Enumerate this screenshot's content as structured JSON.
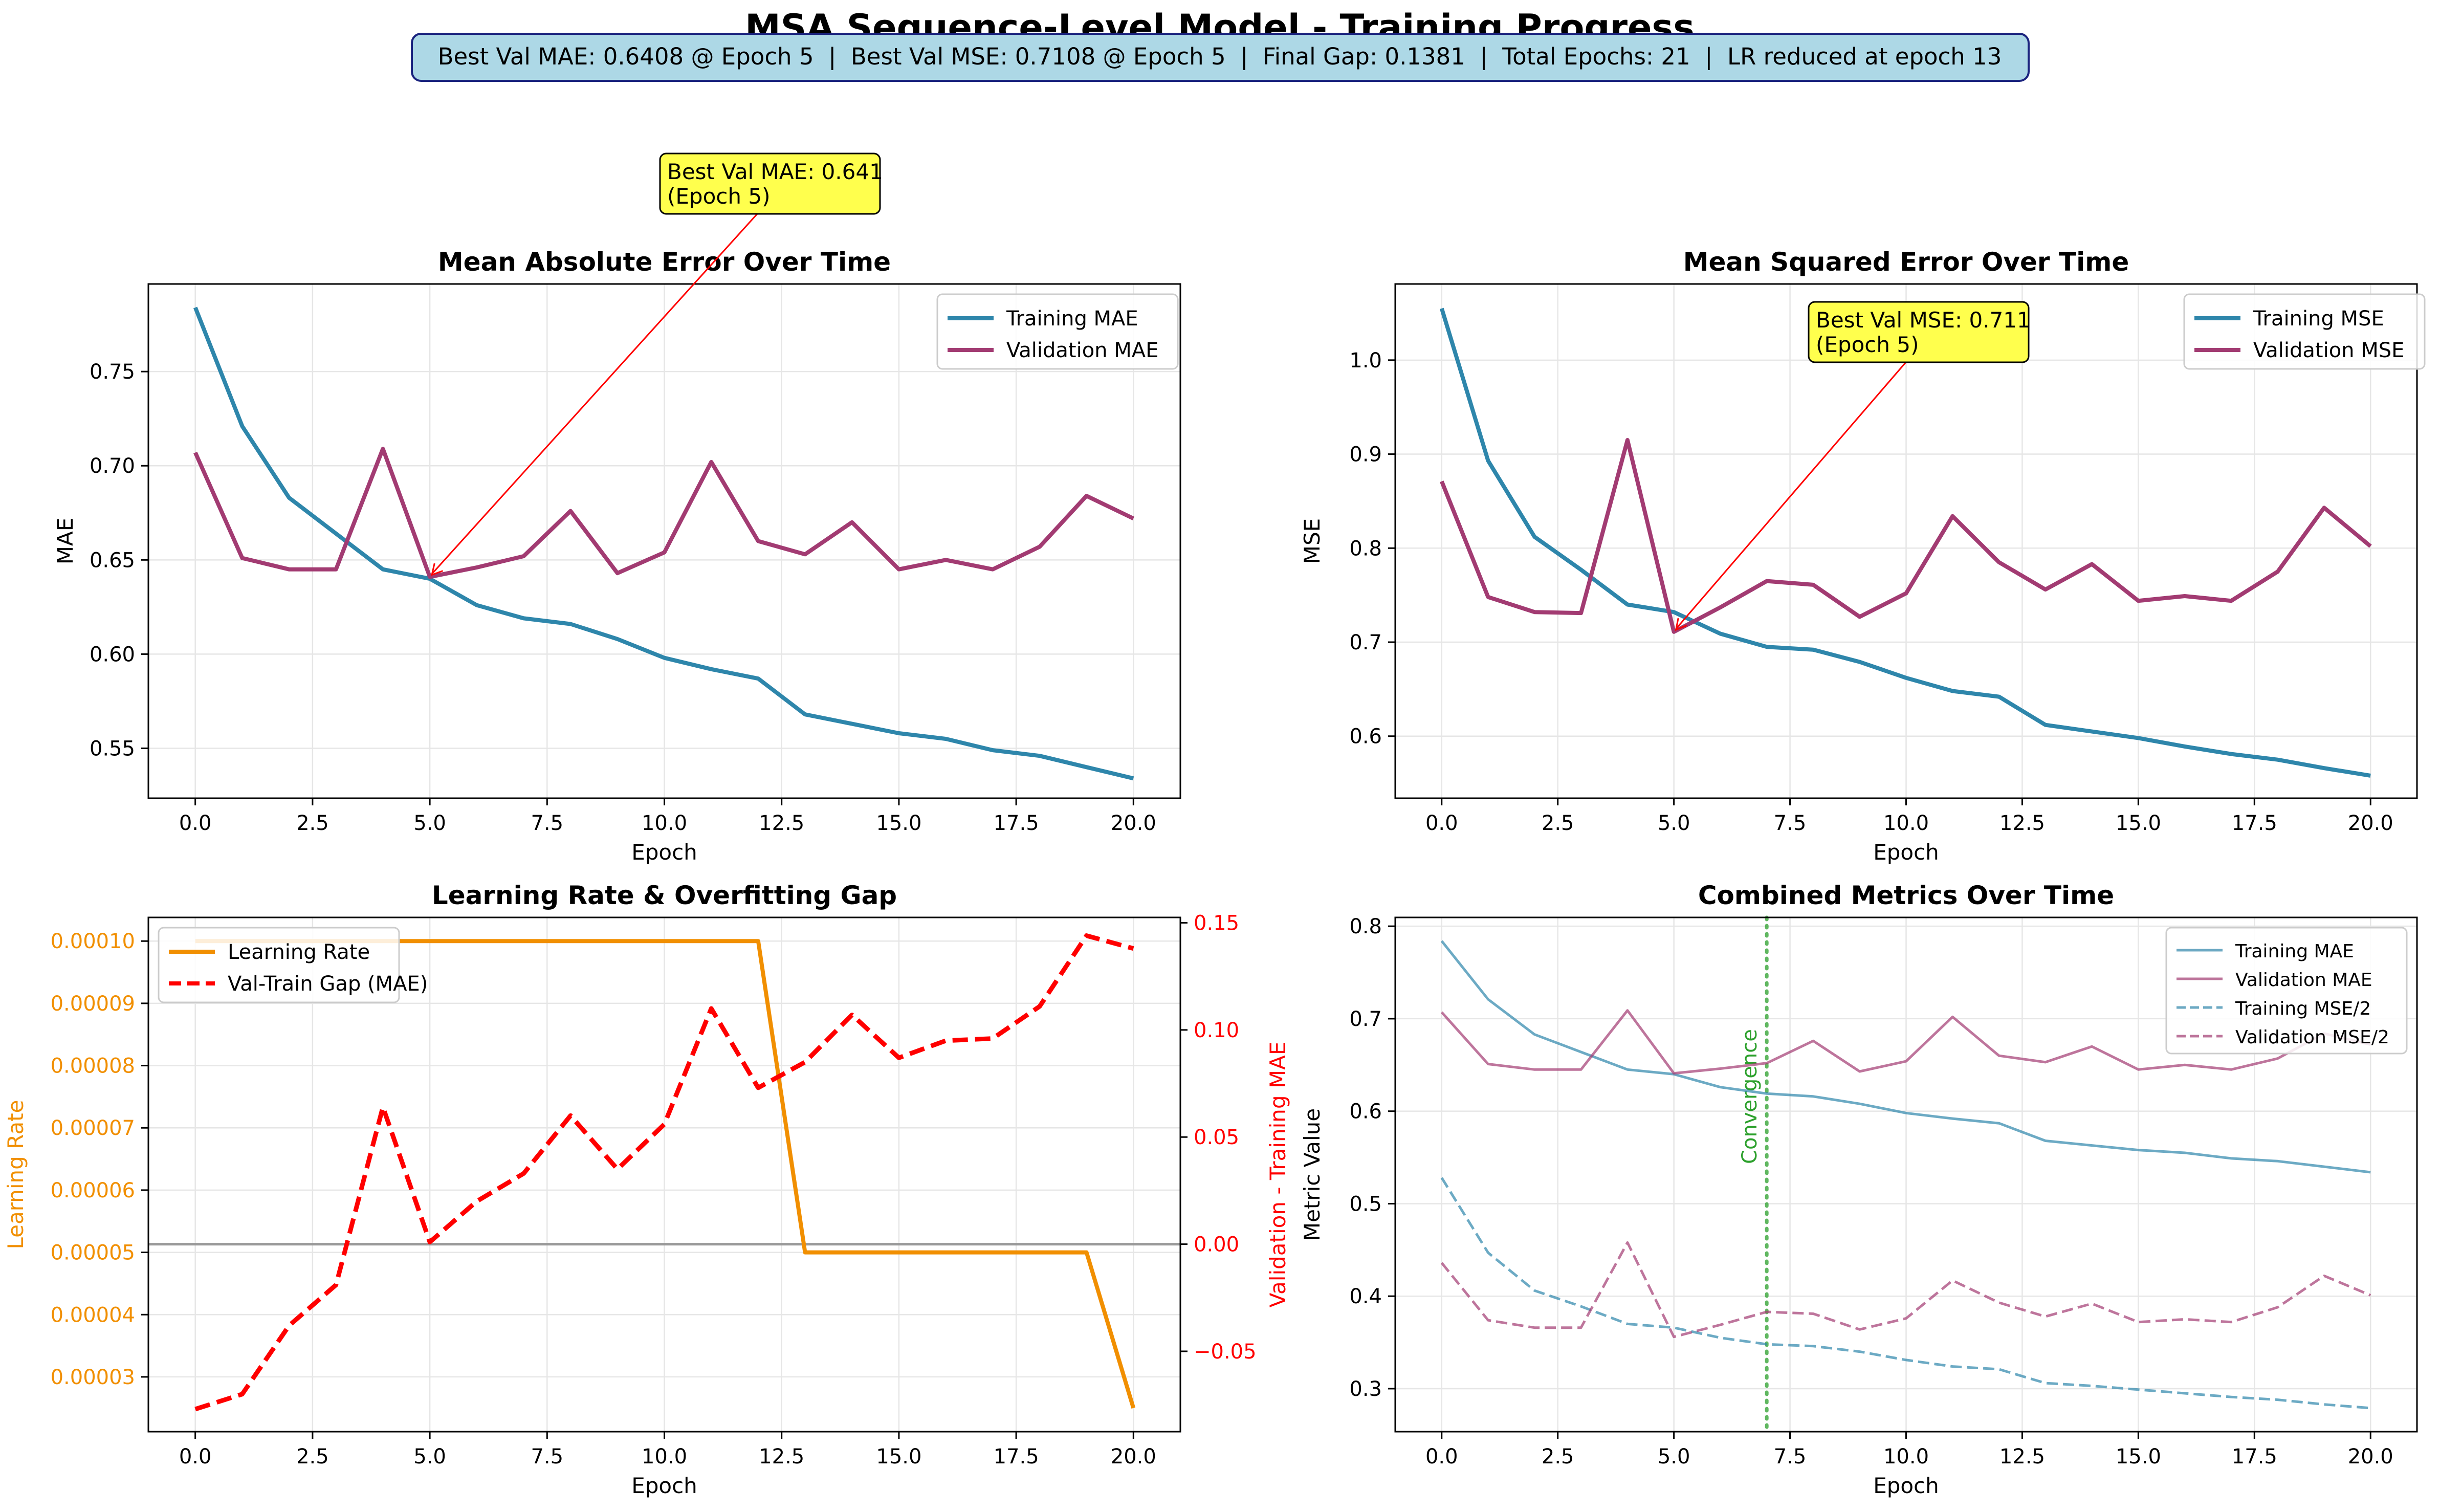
{
  "figure": {
    "suptitle": "MSA Sequence-Level Model - Training Progress",
    "summary": "Best Val MAE: 0.6408 @ Epoch 5  |  Best Val MSE: 0.7108 @ Epoch 5  |  Final Gap: 0.1381  |  Total Epochs: 21  |  LR reduced at epoch 13"
  },
  "colors": {
    "train": "#2e86ab",
    "val": "#a23b72",
    "lr": "#f18f01",
    "gap": "#ff0000",
    "annotation_box": "#ffff4d",
    "summary_box": "#add8e6",
    "convergence": "#2ca02c",
    "grid": "#e6e6e6"
  },
  "chart_data": [
    {
      "type": "line",
      "title": "Mean Absolute Error Over Time",
      "xlabel": "Epoch",
      "ylabel": "MAE",
      "xlim": [
        -1,
        21
      ],
      "ylim": [
        0.5235,
        0.7965
      ],
      "xticks": [
        0,
        2.5,
        5,
        7.5,
        10,
        12.5,
        15,
        17.5,
        20
      ],
      "xtick_labels": [
        "0.0",
        "2.5",
        "5.0",
        "7.5",
        "10.0",
        "12.5",
        "15.0",
        "17.5",
        "20.0"
      ],
      "yticks": [
        0.55,
        0.6,
        0.65,
        0.7,
        0.75
      ],
      "ytick_labels": [
        "0.55",
        "0.60",
        "0.65",
        "0.70",
        "0.75"
      ],
      "grid": true,
      "legend_position": "upper right",
      "x": [
        0,
        1,
        2,
        3,
        4,
        5,
        6,
        7,
        8,
        9,
        10,
        11,
        12,
        13,
        14,
        15,
        16,
        17,
        18,
        19,
        20
      ],
      "series": [
        {
          "name": "Training MAE",
          "color_key": "train",
          "style": "solid",
          "values": [
            0.784,
            0.721,
            0.683,
            0.664,
            0.645,
            0.64,
            0.626,
            0.619,
            0.616,
            0.608,
            0.598,
            0.592,
            0.587,
            0.568,
            0.563,
            0.558,
            0.555,
            0.549,
            0.546,
            0.54,
            0.534
          ]
        },
        {
          "name": "Validation MAE",
          "color_key": "val",
          "style": "solid",
          "values": [
            0.707,
            0.651,
            0.645,
            0.645,
            0.709,
            0.641,
            0.646,
            0.652,
            0.676,
            0.643,
            0.654,
            0.702,
            0.66,
            0.653,
            0.67,
            0.645,
            0.65,
            0.645,
            0.657,
            0.684,
            0.672
          ]
        }
      ],
      "annotation": {
        "line1": "Best Val MAE: 0.641",
        "line2": "(Epoch 5)",
        "x": 5,
        "y": 0.641
      }
    },
    {
      "type": "line",
      "title": "Mean Squared Error Over Time",
      "xlabel": "Epoch",
      "ylabel": "MSE",
      "xlim": [
        -1,
        21
      ],
      "ylim": [
        0.534,
        1.081
      ],
      "xticks": [
        0,
        2.5,
        5,
        7.5,
        10,
        12.5,
        15,
        17.5,
        20
      ],
      "xtick_labels": [
        "0.0",
        "2.5",
        "5.0",
        "7.5",
        "10.0",
        "12.5",
        "15.0",
        "17.5",
        "20.0"
      ],
      "yticks": [
        0.6,
        0.7,
        0.8,
        0.9,
        1.0
      ],
      "ytick_labels": [
        "0.6",
        "0.7",
        "0.8",
        "0.9",
        "1.0"
      ],
      "grid": true,
      "legend_position": "upper right",
      "x": [
        0,
        1,
        2,
        3,
        4,
        5,
        6,
        7,
        8,
        9,
        10,
        11,
        12,
        13,
        14,
        15,
        16,
        17,
        18,
        19,
        20
      ],
      "series": [
        {
          "name": "Training MSE",
          "color_key": "train",
          "style": "solid",
          "values": [
            1.055,
            0.893,
            0.812,
            0.777,
            0.74,
            0.732,
            0.709,
            0.695,
            0.692,
            0.679,
            0.662,
            0.648,
            0.642,
            0.612,
            0.605,
            0.598,
            0.589,
            0.581,
            0.575,
            0.566,
            0.558
          ]
        },
        {
          "name": "Validation MSE",
          "color_key": "val",
          "style": "solid",
          "values": [
            0.871,
            0.748,
            0.732,
            0.731,
            0.915,
            0.711,
            0.737,
            0.765,
            0.761,
            0.727,
            0.752,
            0.834,
            0.785,
            0.756,
            0.783,
            0.744,
            0.749,
            0.744,
            0.775,
            0.843,
            0.802
          ]
        }
      ],
      "annotation": {
        "line1": "Best Val MSE: 0.711",
        "line2": "(Epoch 5)",
        "x": 5,
        "y": 0.711
      }
    },
    {
      "type": "line",
      "title": "Learning Rate & Overfitting Gap",
      "xlabel": "Epoch",
      "ylabel": "Learning Rate",
      "ylabel_right": "Validation - Training MAE",
      "xlim": [
        -1,
        21
      ],
      "ylim": [
        2.12e-05,
        0.0001038
      ],
      "ylim_right": [
        -0.0875,
        0.1525
      ],
      "xticks": [
        0,
        2.5,
        5,
        7.5,
        10,
        12.5,
        15,
        17.5,
        20
      ],
      "xtick_labels": [
        "0.0",
        "2.5",
        "5.0",
        "7.5",
        "10.0",
        "12.5",
        "15.0",
        "17.5",
        "20.0"
      ],
      "yticks": [
        3e-05,
        4e-05,
        5e-05,
        6e-05,
        7e-05,
        8e-05,
        9e-05,
        0.0001
      ],
      "ytick_labels": [
        "0.00003",
        "0.00004",
        "0.00005",
        "0.00006",
        "0.00007",
        "0.00008",
        "0.00009",
        "0.00010"
      ],
      "yticks_right": [
        -0.05,
        0,
        0.05,
        0.1,
        0.15
      ],
      "ytick_labels_right": [
        "−0.05",
        "0.00",
        "0.05",
        "0.10",
        "0.15"
      ],
      "grid": true,
      "legend_position": "upper left",
      "x": [
        0,
        1,
        2,
        3,
        4,
        5,
        6,
        7,
        8,
        9,
        10,
        11,
        12,
        13,
        14,
        15,
        16,
        17,
        18,
        19,
        20
      ],
      "series": [
        {
          "name": "Learning Rate",
          "color_key": "lr",
          "style": "solid",
          "axis": "left",
          "values": [
            0.0001,
            0.0001,
            0.0001,
            0.0001,
            0.0001,
            0.0001,
            0.0001,
            0.0001,
            0.0001,
            0.0001,
            0.0001,
            0.0001,
            0.0001,
            5e-05,
            5e-05,
            5e-05,
            5e-05,
            5e-05,
            5e-05,
            5e-05,
            2.5e-05
          ]
        },
        {
          "name": "Val-Train Gap (MAE)",
          "color_key": "gap",
          "style": "dashed",
          "axis": "right",
          "values": [
            -0.077,
            -0.07,
            -0.038,
            -0.019,
            0.064,
            0.001,
            0.02,
            0.033,
            0.06,
            0.035,
            0.056,
            0.11,
            0.073,
            0.085,
            0.107,
            0.087,
            0.095,
            0.096,
            0.111,
            0.144,
            0.138
          ]
        }
      ],
      "reference_line_right": 0
    },
    {
      "type": "line",
      "title": "Combined Metrics Over Time",
      "xlabel": "Epoch",
      "ylabel": "Metric Value",
      "xlim": [
        -1,
        21
      ],
      "ylim": [
        0.2535,
        0.8095
      ],
      "xticks": [
        0,
        2.5,
        5,
        7.5,
        10,
        12.5,
        15,
        17.5,
        20
      ],
      "xtick_labels": [
        "0.0",
        "2.5",
        "5.0",
        "7.5",
        "10.0",
        "12.5",
        "15.0",
        "17.5",
        "20.0"
      ],
      "yticks": [
        0.3,
        0.4,
        0.5,
        0.6,
        0.7,
        0.8
      ],
      "ytick_labels": [
        "0.3",
        "0.4",
        "0.5",
        "0.6",
        "0.7",
        "0.8"
      ],
      "grid": true,
      "legend_position": "upper right",
      "x": [
        0,
        1,
        2,
        3,
        4,
        5,
        6,
        7,
        8,
        9,
        10,
        11,
        12,
        13,
        14,
        15,
        16,
        17,
        18,
        19,
        20
      ],
      "series": [
        {
          "name": "Training MAE",
          "color_key": "train",
          "style": "solid",
          "values": [
            0.784,
            0.721,
            0.683,
            0.664,
            0.645,
            0.64,
            0.626,
            0.619,
            0.616,
            0.608,
            0.598,
            0.592,
            0.587,
            0.568,
            0.563,
            0.558,
            0.555,
            0.549,
            0.546,
            0.54,
            0.534
          ]
        },
        {
          "name": "Validation MAE",
          "color_key": "val",
          "style": "solid",
          "values": [
            0.707,
            0.651,
            0.645,
            0.645,
            0.709,
            0.641,
            0.646,
            0.652,
            0.676,
            0.643,
            0.654,
            0.702,
            0.66,
            0.653,
            0.67,
            0.645,
            0.65,
            0.645,
            0.657,
            0.684,
            0.672
          ]
        },
        {
          "name": "Training MSE/2",
          "color_key": "train",
          "style": "dashed",
          "values": [
            0.528,
            0.447,
            0.406,
            0.389,
            0.37,
            0.366,
            0.355,
            0.348,
            0.346,
            0.34,
            0.331,
            0.324,
            0.321,
            0.306,
            0.303,
            0.299,
            0.295,
            0.291,
            0.288,
            0.283,
            0.279
          ]
        },
        {
          "name": "Validation MSE/2",
          "color_key": "val",
          "style": "dashed",
          "values": [
            0.436,
            0.374,
            0.366,
            0.366,
            0.458,
            0.356,
            0.369,
            0.383,
            0.381,
            0.364,
            0.376,
            0.417,
            0.393,
            0.378,
            0.392,
            0.372,
            0.375,
            0.372,
            0.388,
            0.422,
            0.401
          ]
        }
      ],
      "convergence": {
        "x": 7,
        "label": "Convergence"
      }
    }
  ]
}
